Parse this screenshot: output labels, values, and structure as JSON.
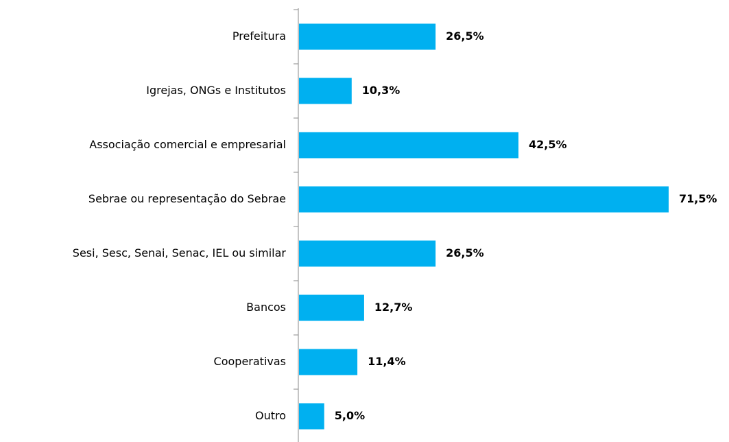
{
  "chart_data": {
    "type": "bar",
    "orientation": "horizontal",
    "categories": [
      "Prefeitura",
      "Igrejas, ONGs e Institutos",
      "Associação comercial e empresarial",
      "Sebrae ou representação do Sebrae",
      "Sesi, Sesc, Senai, Senac, IEL ou similar",
      "Bancos",
      "Cooperativas",
      "Outro"
    ],
    "values": [
      26.5,
      10.3,
      42.5,
      71.5,
      26.5,
      12.7,
      11.4,
      5.0
    ],
    "value_labels": [
      "26,5%",
      "10,3%",
      "42,5%",
      "71,5%",
      "26,5%",
      "12,7%",
      "11,4%",
      "5,0%"
    ],
    "color": "#00b0f0"
  }
}
